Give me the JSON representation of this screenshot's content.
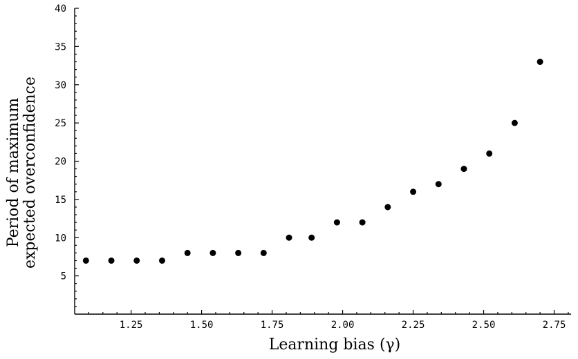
{
  "chart_data": {
    "type": "scatter",
    "title": "",
    "xlabel": "Learning bias (γ)",
    "ylabel_lines": [
      "Period of maximum",
      "expected overconfidence"
    ],
    "xlim": [
      1.05,
      2.81
    ],
    "ylim": [
      0,
      40
    ],
    "x_ticks": [
      1.25,
      1.5,
      1.75,
      2.0,
      2.25,
      2.5,
      2.75
    ],
    "x_tick_labels": [
      "1.25",
      "1.50",
      "1.75",
      "2.00",
      "2.25",
      "2.50",
      "2.75"
    ],
    "x_minor_ticks": [
      1.1,
      1.15,
      1.2,
      1.3,
      1.35,
      1.4,
      1.45,
      1.55,
      1.6,
      1.65,
      1.7,
      1.8,
      1.85,
      1.9,
      1.95,
      2.05,
      2.1,
      2.15,
      2.2,
      2.3,
      2.35,
      2.4,
      2.45,
      2.55,
      2.6,
      2.65,
      2.7,
      2.8
    ],
    "y_ticks": [
      5,
      10,
      15,
      20,
      25,
      30,
      35,
      40
    ],
    "y_tick_labels": [
      "5",
      "10",
      "15",
      "20",
      "25",
      "30",
      "35",
      "40"
    ],
    "y_minor_ticks": [
      1,
      2,
      3,
      4,
      6,
      7,
      8,
      9,
      11,
      12,
      13,
      14,
      16,
      17,
      18,
      19,
      21,
      22,
      23,
      24,
      26,
      27,
      28,
      29,
      31,
      32,
      33,
      34,
      36,
      37,
      38,
      39
    ],
    "grid": false,
    "legend": "none",
    "marker_color": "#000000",
    "points": [
      {
        "x": 1.09,
        "y": 7
      },
      {
        "x": 1.18,
        "y": 7
      },
      {
        "x": 1.27,
        "y": 7
      },
      {
        "x": 1.36,
        "y": 7
      },
      {
        "x": 1.45,
        "y": 8
      },
      {
        "x": 1.54,
        "y": 8
      },
      {
        "x": 1.63,
        "y": 8
      },
      {
        "x": 1.72,
        "y": 8
      },
      {
        "x": 1.81,
        "y": 10
      },
      {
        "x": 1.89,
        "y": 10
      },
      {
        "x": 1.98,
        "y": 12
      },
      {
        "x": 2.07,
        "y": 12
      },
      {
        "x": 2.16,
        "y": 14
      },
      {
        "x": 2.25,
        "y": 16
      },
      {
        "x": 2.34,
        "y": 17
      },
      {
        "x": 2.43,
        "y": 19
      },
      {
        "x": 2.52,
        "y": 21
      },
      {
        "x": 2.61,
        "y": 25
      },
      {
        "x": 2.7,
        "y": 33
      }
    ]
  }
}
